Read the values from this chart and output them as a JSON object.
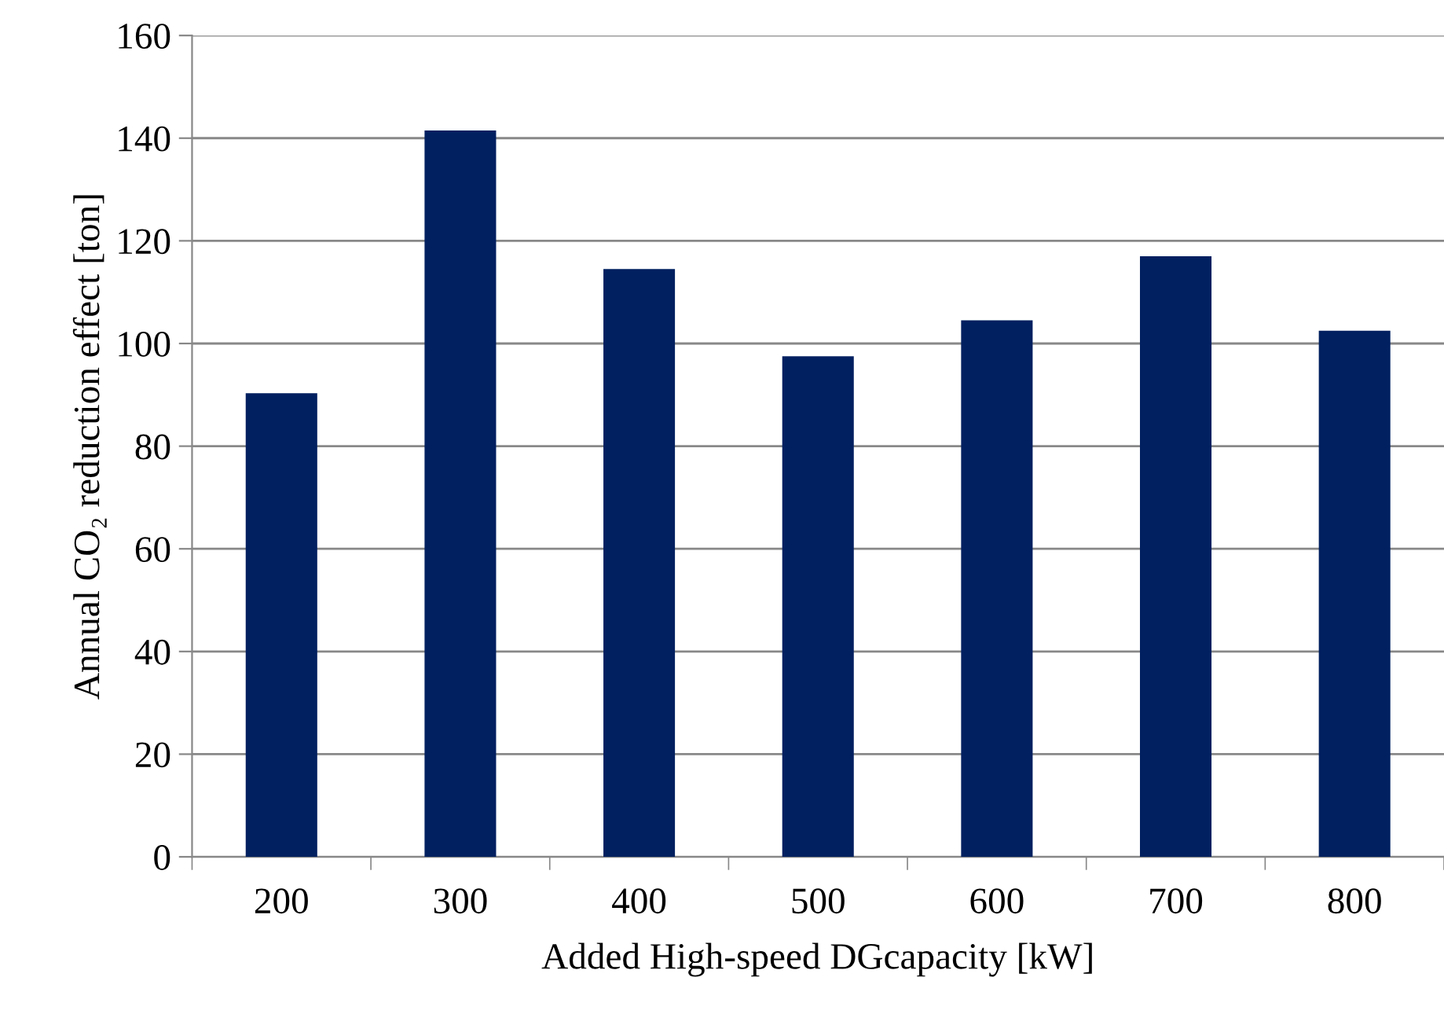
{
  "chart_data": {
    "type": "bar",
    "xlabel": "Added High-speed DGcapacity [kW]",
    "ylabel": "Annual CO₂ reduction effect [ton]",
    "categories": [
      "200",
      "300",
      "400",
      "500",
      "600",
      "700",
      "800"
    ],
    "values": [
      90.3,
      141.5,
      114.5,
      97.5,
      104.5,
      117,
      102.5
    ],
    "color": "#002060",
    "ylim": [
      0,
      160
    ],
    "yticks": [
      0,
      20,
      40,
      60,
      80,
      100,
      120,
      140,
      160
    ],
    "grid": "y"
  }
}
